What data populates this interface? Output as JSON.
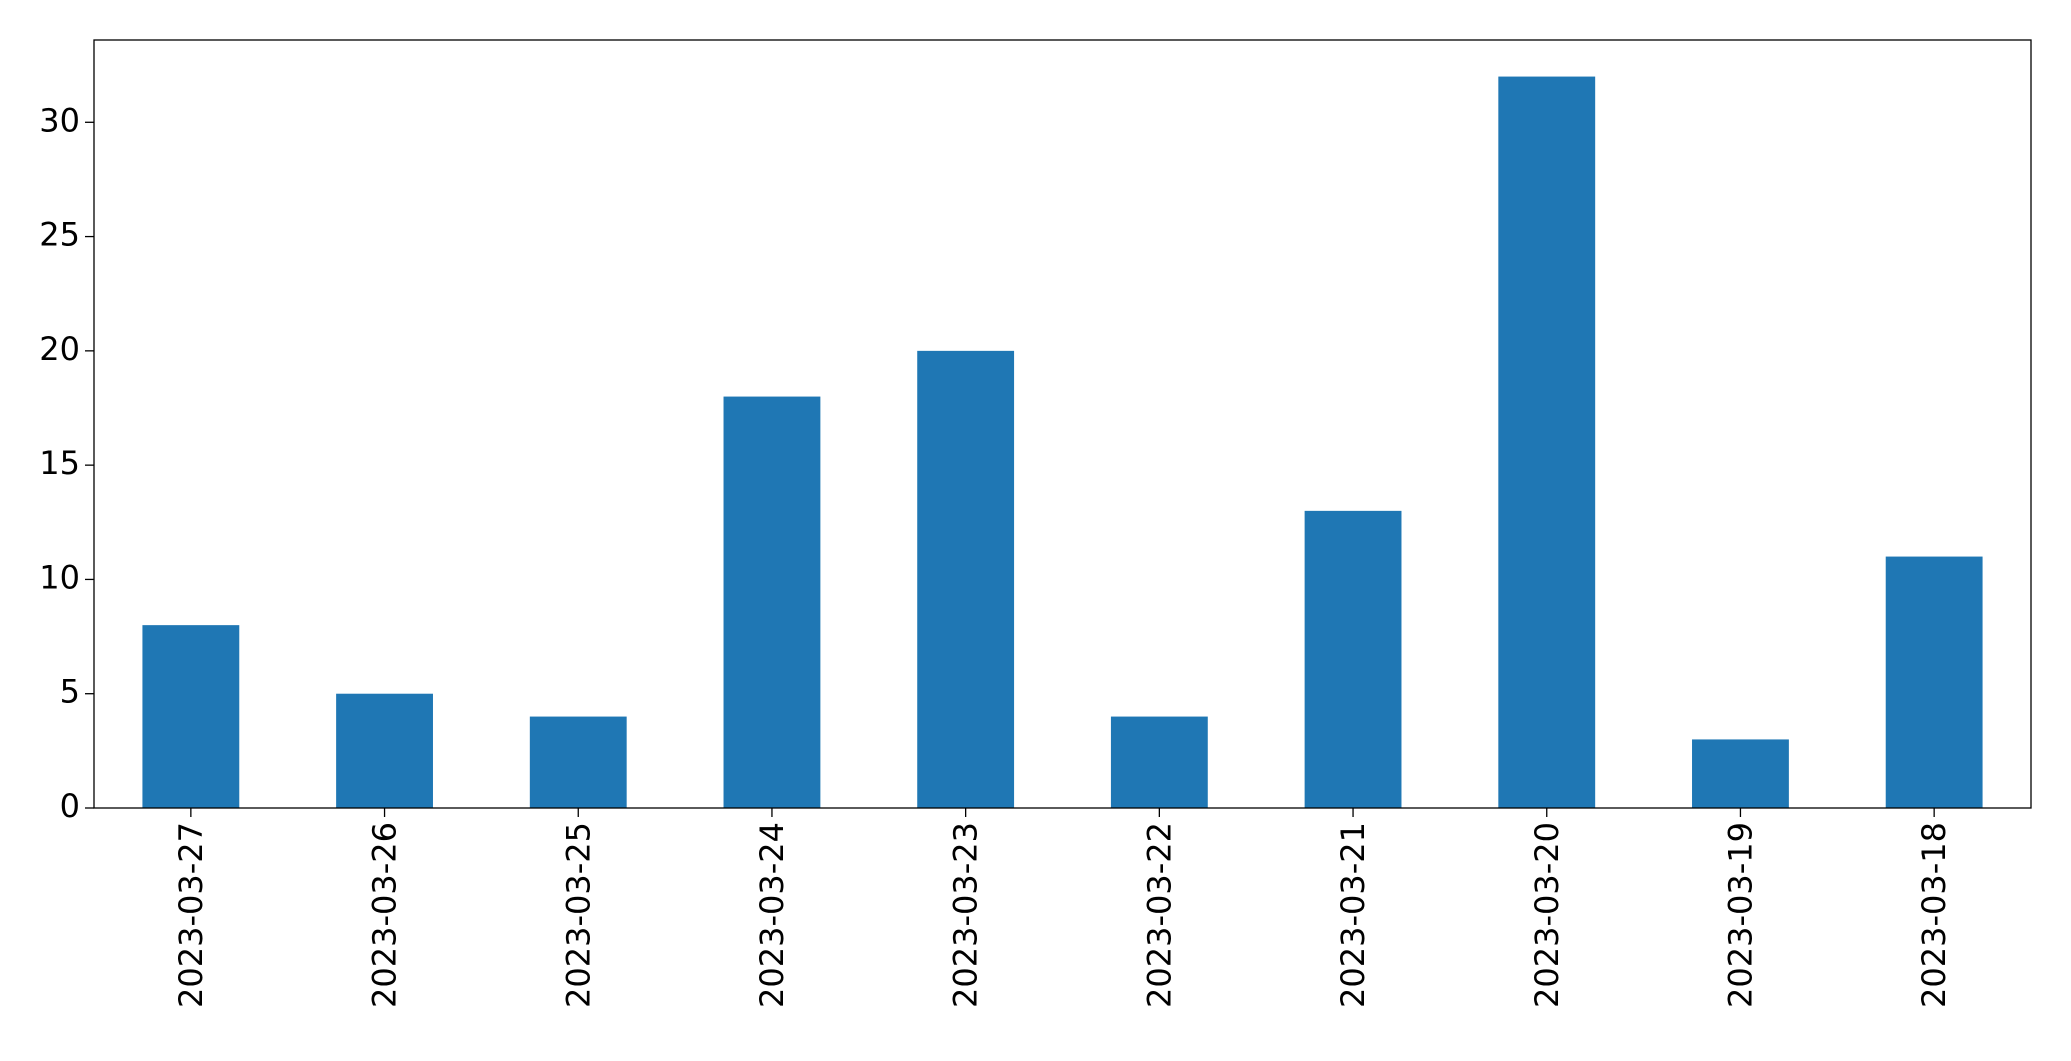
{
  "chart_data": {
    "type": "bar",
    "categories": [
      "2023-03-27",
      "2023-03-26",
      "2023-03-25",
      "2023-03-24",
      "2023-03-23",
      "2023-03-22",
      "2023-03-21",
      "2023-03-20",
      "2023-03-19",
      "2023-03-18"
    ],
    "values": [
      8,
      5,
      4,
      18,
      20,
      4,
      13,
      32,
      3,
      11
    ],
    "color": "#1f77b4",
    "ylim": [
      0,
      33.6
    ],
    "yticks": [
      0,
      5,
      10,
      15,
      20,
      25,
      30
    ],
    "grid": false
  }
}
